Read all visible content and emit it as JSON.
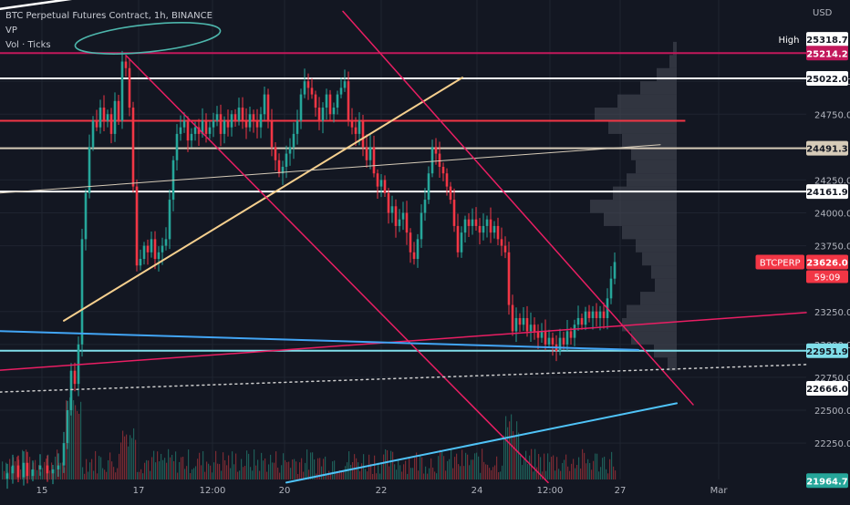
{
  "legend": {
    "symbol_line": "BTC Perpetual Futures Contract, 1h, BINANCE",
    "indicator_vp": "VP",
    "indicator_vol": "Vol · Ticks"
  },
  "price_axis": {
    "unit": "USD",
    "ticks": [
      "25000.0",
      "24750.0",
      "24250.0",
      "24000.0",
      "23750.0",
      "23250.0",
      "23000.0",
      "22750.0",
      "22500.0",
      "22250.0"
    ],
    "high_tag": "High",
    "countdown": "59:09"
  },
  "time_axis": {
    "ticks": [
      "15",
      "17",
      "12:00",
      "20",
      "22",
      "24",
      "12:00",
      "27",
      "Mar"
    ]
  },
  "chart_data": {
    "type": "candlestick",
    "title": "BTC Perpetual Futures Contract, 1h, BINANCE",
    "ylabel": "USD",
    "ylim": [
      21900,
      25500
    ],
    "price_labels": [
      {
        "name": "High",
        "value": 25318.7,
        "text": "25318.7",
        "color": "#ffffff",
        "text_color": "#131722",
        "tag": "High"
      },
      {
        "name": "line-magenta",
        "value": 25214.2,
        "text": "25214.2",
        "color": "#c2185b",
        "text_color": "#ffffff"
      },
      {
        "name": "line-white-1",
        "value": 25022.0,
        "text": "25022.0",
        "color": "#ffffff",
        "text_color": "#131722"
      },
      {
        "name": "line-beige",
        "value": 24491.3,
        "text": "24491.3",
        "color": "#d6cbb8",
        "text_color": "#131722"
      },
      {
        "name": "line-white-2",
        "value": 24161.9,
        "text": "24161.9",
        "color": "#ffffff",
        "text_color": "#131722"
      },
      {
        "name": "BTCPERP",
        "value": 23626.0,
        "text": "23626.0",
        "color": "#f23645",
        "text_color": "#ffffff",
        "tag": "BTCPERP"
      },
      {
        "name": "line-cyan",
        "value": 22951.9,
        "text": "22951.9",
        "color": "#80deea",
        "text_color": "#131722"
      },
      {
        "name": "dotted-level",
        "value": 22666.0,
        "text": "22666.0",
        "color": "#ffffff",
        "text_color": "#131722"
      },
      {
        "name": "low",
        "value": 21964.7,
        "text": "21964.7",
        "color": "#26a69a",
        "text_color": "#ffffff"
      }
    ],
    "horizontal_levels": [
      {
        "value": 25214.2,
        "color": "#c2185b"
      },
      {
        "value": 25022.0,
        "color": "#ffffff"
      },
      {
        "value": 24700.0,
        "color": "#f23645",
        "x_end_fraction": 0.85
      },
      {
        "value": 24491.3,
        "color": "#d6cbb8"
      },
      {
        "value": 24161.9,
        "color": "#ffffff"
      },
      {
        "value": 22951.9,
        "color": "#80deea"
      }
    ],
    "close_path": [
      [
        0,
        21980
      ],
      [
        8,
        22020
      ],
      [
        14,
        22080
      ],
      [
        20,
        21990
      ],
      [
        26,
        22100
      ],
      [
        30,
        22000
      ],
      [
        36,
        22050
      ],
      [
        44,
        22080
      ],
      [
        52,
        22020
      ],
      [
        58,
        22050
      ],
      [
        64,
        22080
      ],
      [
        70,
        22250
      ],
      [
        74,
        22500
      ],
      [
        78,
        22800
      ],
      [
        82,
        22700
      ],
      [
        86,
        23000
      ],
      [
        90,
        23800
      ],
      [
        94,
        24150
      ],
      [
        98,
        24500
      ],
      [
        102,
        24700
      ],
      [
        106,
        24650
      ],
      [
        110,
        24800
      ],
      [
        114,
        24700
      ],
      [
        118,
        24750
      ],
      [
        122,
        24600
      ],
      [
        126,
        24850
      ],
      [
        130,
        24700
      ],
      [
        134,
        25150
      ],
      [
        138,
        25100
      ],
      [
        142,
        24800
      ],
      [
        146,
        24200
      ],
      [
        150,
        23600
      ],
      [
        154,
        23650
      ],
      [
        158,
        23750
      ],
      [
        162,
        23700
      ],
      [
        166,
        23800
      ],
      [
        170,
        23650
      ],
      [
        174,
        23700
      ],
      [
        178,
        23750
      ],
      [
        182,
        23800
      ],
      [
        186,
        24100
      ],
      [
        190,
        24400
      ],
      [
        194,
        24600
      ],
      [
        198,
        24650
      ],
      [
        202,
        24700
      ],
      [
        206,
        24550
      ],
      [
        210,
        24600
      ],
      [
        214,
        24650
      ],
      [
        218,
        24600
      ],
      [
        222,
        24700
      ],
      [
        226,
        24600
      ],
      [
        230,
        24650
      ],
      [
        234,
        24700
      ],
      [
        238,
        24750
      ],
      [
        242,
        24600
      ],
      [
        246,
        24700
      ],
      [
        250,
        24650
      ],
      [
        254,
        24750
      ],
      [
        258,
        24700
      ],
      [
        262,
        24800
      ],
      [
        266,
        24700
      ],
      [
        270,
        24650
      ],
      [
        274,
        24750
      ],
      [
        278,
        24700
      ],
      [
        282,
        24650
      ],
      [
        286,
        24750
      ],
      [
        290,
        24900
      ],
      [
        294,
        24700
      ],
      [
        298,
        24500
      ],
      [
        302,
        24400
      ],
      [
        306,
        24300
      ],
      [
        310,
        24350
      ],
      [
        314,
        24450
      ],
      [
        318,
        24500
      ],
      [
        322,
        24600
      ],
      [
        326,
        24700
      ],
      [
        330,
        24900
      ],
      [
        334,
        25000
      ],
      [
        338,
        24950
      ],
      [
        342,
        24900
      ],
      [
        346,
        24800
      ],
      [
        350,
        24700
      ],
      [
        354,
        24800
      ],
      [
        358,
        24900
      ],
      [
        362,
        24750
      ],
      [
        366,
        24800
      ],
      [
        370,
        24900
      ],
      [
        374,
        24950
      ],
      [
        378,
        25000
      ],
      [
        382,
        24700
      ],
      [
        386,
        24650
      ],
      [
        390,
        24600
      ],
      [
        394,
        24700
      ],
      [
        398,
        24500
      ],
      [
        402,
        24400
      ],
      [
        406,
        24500
      ],
      [
        410,
        24300
      ],
      [
        414,
        24200
      ],
      [
        418,
        24250
      ],
      [
        422,
        24150
      ],
      [
        426,
        24000
      ],
      [
        430,
        24050
      ],
      [
        434,
        23900
      ],
      [
        438,
        23950
      ],
      [
        442,
        24000
      ],
      [
        446,
        23850
      ],
      [
        450,
        23700
      ],
      [
        454,
        23650
      ],
      [
        458,
        23800
      ],
      [
        462,
        24000
      ],
      [
        466,
        24100
      ],
      [
        470,
        24300
      ],
      [
        474,
        24500
      ],
      [
        478,
        24450
      ],
      [
        482,
        24350
      ],
      [
        486,
        24300
      ],
      [
        490,
        24200
      ],
      [
        494,
        24100
      ],
      [
        498,
        23900
      ],
      [
        502,
        23700
      ],
      [
        506,
        23850
      ],
      [
        510,
        23950
      ],
      [
        514,
        23900
      ],
      [
        518,
        23950
      ],
      [
        522,
        23900
      ],
      [
        526,
        23850
      ],
      [
        530,
        23900
      ],
      [
        534,
        23950
      ],
      [
        538,
        23850
      ],
      [
        542,
        23900
      ],
      [
        546,
        23800
      ],
      [
        550,
        23750
      ],
      [
        554,
        23700
      ],
      [
        558,
        23300
      ],
      [
        562,
        23100
      ],
      [
        566,
        23200
      ],
      [
        570,
        23150
      ],
      [
        574,
        23200
      ],
      [
        578,
        23100
      ],
      [
        582,
        23150
      ],
      [
        586,
        23100
      ],
      [
        590,
        23050
      ],
      [
        594,
        23100
      ],
      [
        598,
        23000
      ],
      [
        602,
        23050
      ],
      [
        606,
        23000
      ],
      [
        610,
        22950
      ],
      [
        614,
        23050
      ],
      [
        618,
        23000
      ],
      [
        622,
        23100
      ],
      [
        626,
        23050
      ],
      [
        630,
        23150
      ],
      [
        634,
        23200
      ],
      [
        638,
        23150
      ],
      [
        642,
        23250
      ],
      [
        646,
        23200
      ],
      [
        650,
        23250
      ],
      [
        654,
        23200
      ],
      [
        658,
        23250
      ],
      [
        662,
        23200
      ],
      [
        666,
        23350
      ],
      [
        670,
        23500
      ],
      [
        674,
        23626
      ]
    ],
    "volume_profile": [
      [
        25200,
        4
      ],
      [
        25100,
        8
      ],
      [
        25000,
        22
      ],
      [
        24900,
        40
      ],
      [
        24800,
        65
      ],
      [
        24700,
        90
      ],
      [
        24600,
        75
      ],
      [
        24500,
        60
      ],
      [
        24400,
        50
      ],
      [
        24300,
        45
      ],
      [
        24200,
        55
      ],
      [
        24100,
        70
      ],
      [
        24000,
        95
      ],
      [
        23900,
        80
      ],
      [
        23800,
        60
      ],
      [
        23700,
        45
      ],
      [
        23600,
        38
      ],
      [
        23500,
        28
      ],
      [
        23400,
        24
      ],
      [
        23300,
        40
      ],
      [
        23200,
        55
      ],
      [
        23100,
        60
      ],
      [
        23000,
        50
      ],
      [
        22900,
        25
      ],
      [
        22800,
        10
      ]
    ],
    "trendlines": [
      {
        "name": "white-resistance",
        "color": "#ffffff",
        "width": 2.5,
        "p1": [
          0,
          25550
        ],
        "p2": [
          418,
          25955
        ]
      },
      {
        "name": "orange-rising",
        "color": "#f5cf8e",
        "width": 2,
        "p1": [
          70,
          23180
        ],
        "p2": [
          507,
          25028
        ]
      },
      {
        "name": "grey-rising",
        "color": "#d6cbb8",
        "width": 1,
        "p1": [
          0,
          24151
        ],
        "p2": [
          724,
          24518
        ]
      },
      {
        "name": "pink-channel-upper",
        "color": "#e91e63",
        "width": 1.5,
        "p1": [
          376,
          25532
        ],
        "p2": [
          760,
          22542
        ]
      },
      {
        "name": "pink-channel-lower",
        "color": "#e91e63",
        "width": 1.5,
        "p1": [
          138,
          25197
        ],
        "p2": [
          601,
          21950
        ]
      },
      {
        "name": "red-rising",
        "color": "#e91e63",
        "width": 1.5,
        "p1": [
          0,
          22804
        ],
        "p2": [
          884,
          23242
        ]
      },
      {
        "name": "blue-falling",
        "color": "#42a5f5",
        "width": 2,
        "p1": [
          0,
          23101
        ],
        "p2": [
          700,
          22958
        ]
      },
      {
        "name": "teal-rising",
        "color": "#4fc3f7",
        "width": 2,
        "p1": [
          314,
          21950
        ],
        "p2": [
          742,
          22553
        ]
      },
      {
        "name": "dotted-white",
        "color": "#cccccc",
        "width": 1.5,
        "dash": true,
        "p1": [
          0,
          22638
        ],
        "p2": [
          884,
          22847
        ]
      }
    ],
    "annotation": {
      "type": "ellipse",
      "color": "#4db6ac"
    }
  }
}
